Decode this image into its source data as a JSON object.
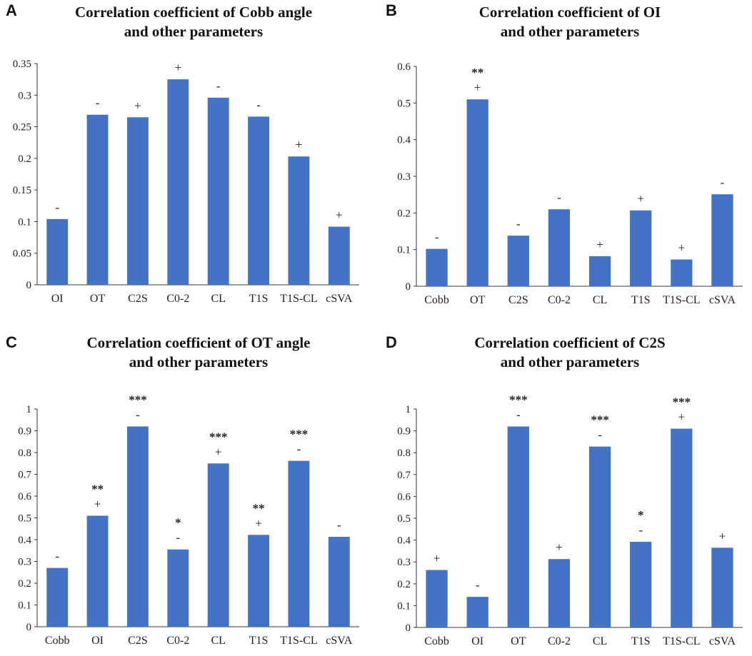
{
  "chart_data": [
    {
      "type": "bar",
      "panel": "A",
      "title": [
        "Correlation coefficient of Cobb angle",
        "and other parameters"
      ],
      "categories": [
        "OI",
        "OT",
        "C2S",
        "C0-2",
        "CL",
        "T1S",
        "T1S-CL",
        "cSVA"
      ],
      "values": [
        0.104,
        0.269,
        0.265,
        0.325,
        0.296,
        0.266,
        0.203,
        0.092
      ],
      "signs": [
        "-",
        "-",
        "+",
        "+",
        "-",
        "-",
        "+",
        "+"
      ],
      "significance": [
        "",
        "",
        "",
        "",
        "",
        "",
        "",
        ""
      ],
      "ylim": [
        0,
        0.35
      ],
      "yticks": [
        0,
        0.05,
        0.1,
        0.15,
        0.2,
        0.25,
        0.3,
        0.35
      ],
      "ytick_labels": [
        "0",
        "0.05",
        "0.1",
        "0.15",
        "0.2",
        "0.25",
        "0.3",
        "0.35"
      ],
      "xlabel": "",
      "ylabel": ""
    },
    {
      "type": "bar",
      "panel": "B",
      "title": [
        "Correlation coefficient of OI",
        "and other parameters"
      ],
      "categories": [
        "Cobb",
        "OT",
        "C2S",
        "C0-2",
        "CL",
        "T1S",
        "T1S-CL",
        "cSVA"
      ],
      "values": [
        0.102,
        0.51,
        0.138,
        0.21,
        0.082,
        0.207,
        0.073,
        0.251
      ],
      "signs": [
        "-",
        "+",
        "-",
        "-",
        "+",
        "+",
        "+",
        "-"
      ],
      "significance": [
        "",
        "**",
        "",
        "",
        "",
        "",
        "",
        ""
      ],
      "ylim": [
        0,
        0.6
      ],
      "yticks": [
        0,
        0.1,
        0.2,
        0.3,
        0.4,
        0.5,
        0.6
      ],
      "ytick_labels": [
        "0",
        "0.1",
        "0.2",
        "0.3",
        "0.4",
        "0.5",
        "0.6"
      ],
      "xlabel": "",
      "ylabel": ""
    },
    {
      "type": "bar",
      "panel": "C",
      "title": [
        "Correlation coefficient of OT angle",
        "and other parameters"
      ],
      "categories": [
        "Cobb",
        "OI",
        "C2S",
        "C0-2",
        "CL",
        "T1S",
        "T1S-CL",
        "cSVA"
      ],
      "values": [
        0.27,
        0.51,
        0.92,
        0.355,
        0.75,
        0.422,
        0.762,
        0.413
      ],
      "signs": [
        "-",
        "+",
        "-",
        "-",
        "+",
        "+",
        "-",
        "-"
      ],
      "significance": [
        "",
        "**",
        "***",
        "*",
        "***",
        "**",
        "***",
        ""
      ],
      "ylim": [
        0,
        1
      ],
      "yticks": [
        0,
        0.1,
        0.2,
        0.3,
        0.4,
        0.5,
        0.6,
        0.7,
        0.8,
        0.9,
        1
      ],
      "ytick_labels": [
        "0",
        "0.1",
        "0.2",
        "0.3",
        "0.4",
        "0.5",
        "0.6",
        "0.7",
        "0.8",
        "0.9",
        "1"
      ],
      "xlabel": "",
      "ylabel": ""
    },
    {
      "type": "bar",
      "panel": "D",
      "title": [
        "Correlation coefficient of C2S",
        "and other parameters"
      ],
      "categories": [
        "Cobb",
        "OI",
        "OT",
        "C0-2",
        "CL",
        "T1S",
        "T1S-CL",
        "cSVA"
      ],
      "values": [
        0.263,
        0.14,
        0.92,
        0.313,
        0.828,
        0.392,
        0.91,
        0.365
      ],
      "signs": [
        "+",
        "-",
        "-",
        "+",
        "-",
        "-",
        "+",
        "+"
      ],
      "significance": [
        "",
        "",
        "***",
        "",
        "***",
        "*",
        "***",
        ""
      ],
      "ylim": [
        0,
        1
      ],
      "yticks": [
        0,
        0.1,
        0.2,
        0.3,
        0.4,
        0.5,
        0.6,
        0.7,
        0.8,
        0.9,
        1
      ],
      "ytick_labels": [
        "0",
        "0.1",
        "0.2",
        "0.3",
        "0.4",
        "0.5",
        "0.6",
        "0.7",
        "0.8",
        "0.9",
        "1"
      ],
      "xlabel": "",
      "ylabel": ""
    }
  ],
  "colors": {
    "bar": "#4472C4"
  }
}
